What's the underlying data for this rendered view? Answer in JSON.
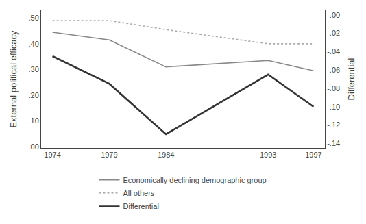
{
  "chart_data": {
    "type": "line",
    "x": [
      1974,
      1979,
      1984,
      1993,
      1997
    ],
    "xlim": [
      1973,
      1998
    ],
    "xticks": [
      1974,
      1979,
      1984,
      1993,
      1997
    ],
    "ylabel": "External political efficacy",
    "y2label": "Differential",
    "ylim": [
      -0.005,
      0.53
    ],
    "yticks": [
      {
        "value": 0.0,
        "label": ".00"
      },
      {
        "value": 0.1,
        "label": ".10"
      },
      {
        "value": 0.2,
        "label": ".20"
      },
      {
        "value": 0.3,
        "label": ".30"
      },
      {
        "value": 0.4,
        "label": ".40"
      },
      {
        "value": 0.5,
        "label": ".50"
      }
    ],
    "y2lim": [
      -0.145,
      0.005
    ],
    "y2ticks": [
      {
        "value": 0.0,
        "label": "-.00"
      },
      {
        "value": -0.02,
        "label": "-.02"
      },
      {
        "value": -0.04,
        "label": "-.04"
      },
      {
        "value": -0.06,
        "label": "-.06"
      },
      {
        "value": -0.08,
        "label": "-.08"
      },
      {
        "value": -0.1,
        "label": "-.10"
      },
      {
        "value": -0.12,
        "label": "-.12"
      },
      {
        "value": -0.14,
        "label": "-.14"
      }
    ],
    "series": [
      {
        "name": "Economically declining demographic group",
        "color": "#888888",
        "line_style": "solid",
        "values": [
          0.445,
          0.415,
          0.31,
          0.335,
          0.295
        ]
      },
      {
        "name": "All others",
        "color": "#aaaaaa",
        "line_style": "dotted",
        "values": [
          0.49,
          0.49,
          0.455,
          0.4,
          0.4
        ]
      },
      {
        "name": "Differential",
        "color": "#333333",
        "line_style": "solid",
        "axis": "y2",
        "values": [
          -0.045,
          -0.075,
          -0.13,
          -0.065,
          -0.1
        ]
      }
    ],
    "grid": false,
    "legend": "bottom"
  }
}
